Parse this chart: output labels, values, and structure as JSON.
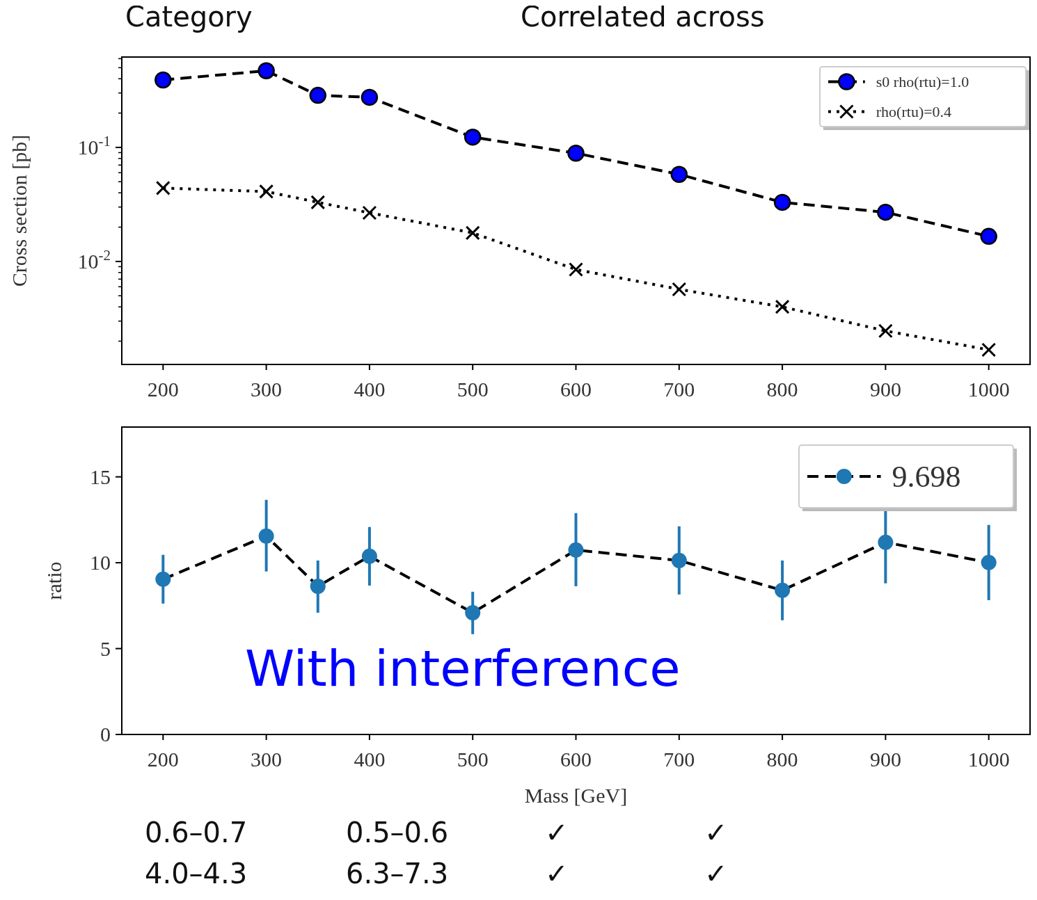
{
  "chart_data": [
    {
      "type": "line",
      "ylabel": "Cross section [pb]",
      "log": "y",
      "xlim": [
        160,
        1040
      ],
      "ylim": [
        0.00125,
        0.62
      ],
      "legend": "top right",
      "x": [
        200,
        300,
        350,
        400,
        500,
        600,
        700,
        800,
        900,
        1000
      ],
      "xticks": [
        200,
        300,
        400,
        500,
        600,
        700,
        800,
        900,
        1000
      ],
      "yticks": [
        {
          "value": 0.1,
          "label": "10$^{-1}$"
        },
        {
          "value": 0.01,
          "label": "10$^{-2}$"
        },
        {
          "value": 0.002,
          "label": null
        },
        {
          "value": 0.003,
          "label": null
        },
        {
          "value": 0.004,
          "label": null
        },
        {
          "value": 0.005,
          "label": null
        },
        {
          "value": 0.006,
          "label": null
        },
        {
          "value": 0.007,
          "label": null
        },
        {
          "value": 0.008,
          "label": null
        },
        {
          "value": 0.009,
          "label": null
        },
        {
          "value": 0.02,
          "label": null
        },
        {
          "value": 0.03,
          "label": null
        },
        {
          "value": 0.04,
          "label": null
        },
        {
          "value": 0.05,
          "label": null
        },
        {
          "value": 0.06,
          "label": null
        },
        {
          "value": 0.07,
          "label": null
        },
        {
          "value": 0.08,
          "label": null
        },
        {
          "value": 0.09,
          "label": null
        },
        {
          "value": 0.2,
          "label": null
        },
        {
          "value": 0.3,
          "label": null
        },
        {
          "value": 0.4,
          "label": null
        },
        {
          "value": 0.5,
          "label": null
        },
        {
          "value": 0.6,
          "label": null
        }
      ],
      "series": [
        {
          "name": "s0 rho(rtu)=1.0",
          "color": "#0000ff",
          "marker": "circle",
          "line_style": "dashed",
          "values": [
            0.39,
            0.47,
            0.286,
            0.275,
            0.123,
            0.089,
            0.058,
            0.033,
            0.027,
            0.0166
          ]
        },
        {
          "name": "rho(rtu)=0.4",
          "color": "#000000",
          "marker": "cross",
          "line_style": "dotted",
          "values": [
            0.044,
            0.041,
            0.033,
            0.0267,
            0.0178,
            0.0085,
            0.0057,
            0.004,
            0.00246,
            0.00168
          ]
        }
      ]
    },
    {
      "type": "line",
      "ylabel": "ratio",
      "xlabel": "Mass [GeV]",
      "xlim": [
        160,
        1040
      ],
      "ylim": [
        0,
        17.9
      ],
      "legend": "top right",
      "x": [
        200,
        300,
        350,
        400,
        500,
        600,
        700,
        800,
        900,
        1000
      ],
      "xticks": [
        200,
        300,
        400,
        500,
        600,
        700,
        800,
        900,
        1000
      ],
      "yticks": [
        0,
        5,
        10,
        15
      ],
      "annotations": [
        "With interference"
      ],
      "series": [
        {
          "name": "9.698",
          "color": "#1f77b4",
          "marker": "circle",
          "line_style": "dashed",
          "values": [
            9.04,
            11.55,
            8.63,
            10.38,
            7.09,
            10.74,
            10.13,
            8.39,
            11.19,
            10.01
          ],
          "errors": [
            [
              7.62,
              10.46
            ],
            [
              9.49,
              13.66
            ],
            [
              7.09,
              10.13
            ],
            [
              8.67,
              12.08
            ],
            [
              5.84,
              8.31
            ],
            [
              8.63,
              12.89
            ],
            [
              8.15,
              12.12
            ],
            [
              6.65,
              10.13
            ],
            [
              8.8,
              13.2
            ],
            [
              7.82,
              12.2
            ]
          ]
        }
      ]
    },
    {
      "type": "other",
      "annotations": [
        "Category",
        "Correlated across",
        "0.6–0.7",
        "0.5–0.6",
        "✓",
        "✓",
        "4.0–4.3",
        "6.3–7.3",
        "✓",
        "✓"
      ]
    }
  ]
}
